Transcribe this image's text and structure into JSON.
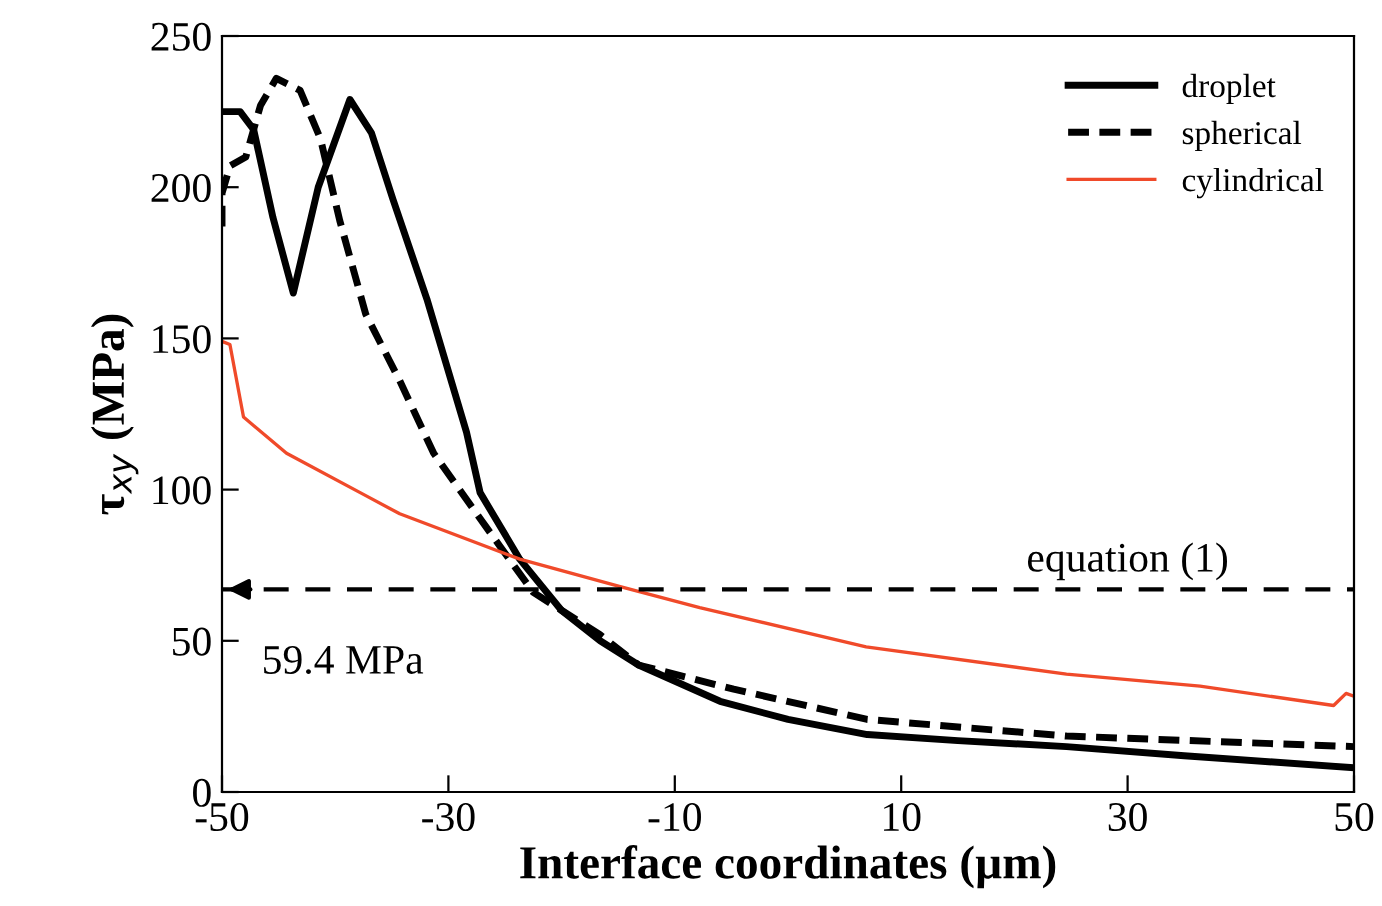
{
  "chart_data": {
    "type": "line",
    "xlabel": "Interface coordinates (µm)",
    "ylabel": "τ$_{xy}$ (MPa)",
    "xlim": [
      -50,
      50
    ],
    "xticks": [
      -50,
      -30,
      -10,
      10,
      30,
      50
    ],
    "ylim": [
      0,
      250
    ],
    "yticks": [
      0,
      50,
      100,
      150,
      200,
      250
    ],
    "grid": false,
    "legend": "top right",
    "marker": "none",
    "series": [
      {
        "name": "droplet",
        "color": "#000000",
        "line_style": "solid",
        "x": [
          -50,
          -48.4,
          -47.2,
          -45.5,
          -43.7,
          -41.5,
          -38.7,
          -36.8,
          -34.9,
          -31.9,
          -28.4,
          -27.2,
          -23.7,
          -20,
          -16.6,
          -13.2,
          -6,
          0,
          7,
          15,
          24.6,
          35,
          50
        ],
        "values": [
          225,
          225,
          219,
          190,
          165,
          200,
          229,
          218,
          196,
          163,
          119,
          99,
          77,
          60,
          50,
          42,
          30,
          24,
          19,
          17,
          15,
          12,
          8
        ]
      },
      {
        "name": "spherical",
        "color": "#000000",
        "line_style": "dashed",
        "x": [
          -50,
          -50,
          -49.3,
          -47.9,
          -46.6,
          -45.2,
          -43.1,
          -41.3,
          -39.6,
          -37.3,
          -34.3,
          -31.3,
          -25.4,
          -22.5,
          -16.6,
          -13.2,
          -4.8,
          7,
          24.6,
          50
        ],
        "values": [
          187,
          198,
          207,
          210,
          227,
          236,
          232,
          216,
          189,
          158,
          136,
          112,
          81,
          66,
          52,
          42,
          34,
          24,
          18.5,
          15
        ]
      },
      {
        "name": "cylindrical",
        "color": "#f04a2a",
        "line_style": "solid",
        "x": [
          -50,
          -49.3,
          -48.1,
          -44.3,
          -37.3,
          -34.3,
          -23.7,
          -14.9,
          -7.8,
          6.9,
          24.6,
          36.4,
          48.2,
          49.3,
          50
        ],
        "values": [
          149,
          148,
          124,
          112,
          98,
          92,
          77,
          68,
          61,
          48,
          39,
          35,
          28.6,
          32.6,
          31.7
        ]
      }
    ],
    "ref_lines": [
      {
        "axis": "y",
        "value": 67,
        "color": "#000000",
        "line_style": "dashed"
      }
    ],
    "annotations": [
      "equation (1)",
      "59.4 MPa"
    ]
  }
}
